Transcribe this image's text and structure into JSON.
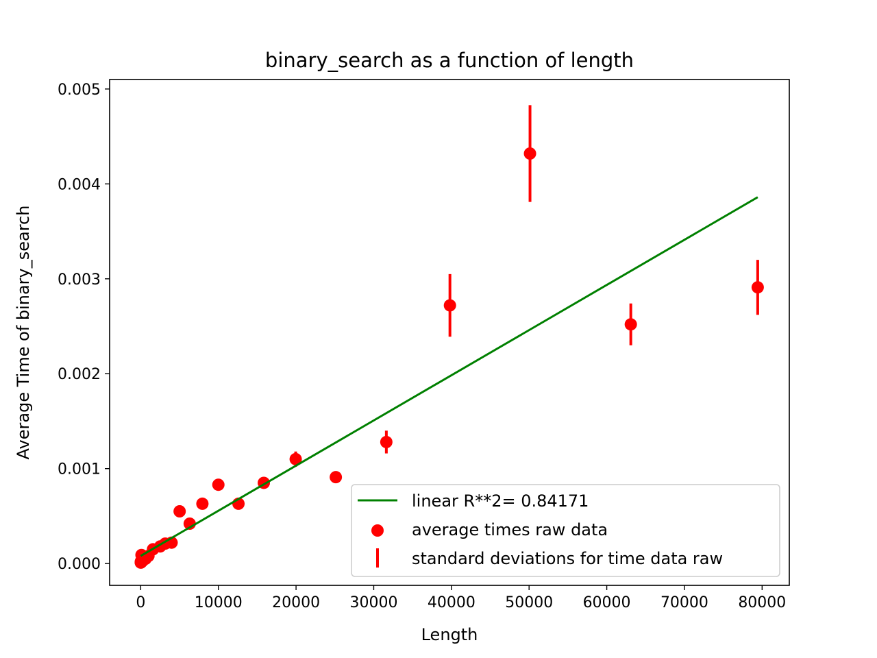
{
  "chart_data": {
    "type": "scatter",
    "title": "binary_search as a function of length",
    "xlabel": "Length",
    "ylabel": "Average Time of binary_search",
    "xlim": [
      -4000,
      83500
    ],
    "ylim": [
      -0.00023,
      0.0051
    ],
    "xticks": [
      0,
      10000,
      20000,
      30000,
      40000,
      50000,
      60000,
      70000,
      80000
    ],
    "xtick_labels": [
      "0",
      "10000",
      "20000",
      "30000",
      "40000",
      "50000",
      "60000",
      "70000",
      "80000"
    ],
    "yticks": [
      0,
      0.001,
      0.002,
      0.003,
      0.004,
      0.005
    ],
    "ytick_labels": [
      "0.000",
      "0.001",
      "0.002",
      "0.003",
      "0.004",
      "0.005"
    ],
    "grid": false,
    "legend_position": "lower-right",
    "colors": {
      "points": "#ff0000",
      "fit": "#008000"
    },
    "series": [
      {
        "name": "average times raw data",
        "kind": "scatter",
        "x": [
          10,
          16,
          25,
          40,
          63,
          100,
          158,
          251,
          398,
          631,
          1000,
          1585,
          2512,
          3162,
          3981,
          5012,
          6310,
          7943,
          10000,
          12589,
          15849,
          19953,
          25119,
          31623,
          39811,
          50119,
          63096,
          79433
        ],
        "y": [
          1e-05,
          2e-05,
          1e-05,
          2e-05,
          2e-05,
          9e-05,
          2e-05,
          3e-05,
          4e-05,
          5e-05,
          8e-05,
          0.00015,
          0.00018,
          0.00021,
          0.00022,
          0.00055,
          0.00042,
          0.00063,
          0.00083,
          0.00063,
          0.00085,
          0.0011,
          0.00091,
          0.00128,
          0.00272,
          0.00432,
          0.00252,
          0.00291
        ]
      },
      {
        "name": "standard deviations for time data raw",
        "kind": "errorbar",
        "x": [
          5012,
          7943,
          10000,
          15849,
          19953,
          25119,
          31623,
          39811,
          50119,
          63096,
          79433
        ],
        "y": [
          0.00055,
          0.00063,
          0.00083,
          0.00085,
          0.0011,
          0.00091,
          0.00128,
          0.00272,
          0.00432,
          0.00252,
          0.00291
        ],
        "err": [
          2e-05,
          2e-05,
          5e-05,
          4e-05,
          8e-05,
          4e-05,
          0.00012,
          0.00033,
          0.00051,
          0.00022,
          0.00029
        ]
      },
      {
        "name": "linear R**2= 0.84171",
        "kind": "line",
        "x": [
          0,
          79433
        ],
        "y": [
          8e-05,
          0.00386
        ]
      }
    ],
    "legend": [
      {
        "label": "linear R**2= 0.84171",
        "marker": "line"
      },
      {
        "label": "average times raw data",
        "marker": "dot"
      },
      {
        "label": "standard deviations for time data raw",
        "marker": "bar"
      }
    ]
  }
}
